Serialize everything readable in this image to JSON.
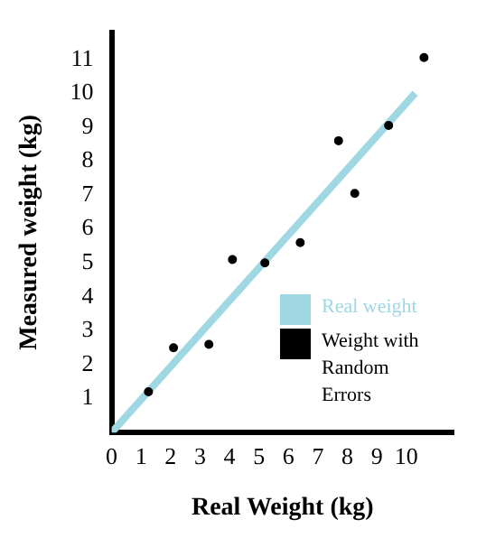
{
  "chart_data": {
    "type": "scatter",
    "xlabel": "Real Weight (kg)",
    "ylabel": "Measured weight (kg)",
    "xlim": [
      0,
      11.6
    ],
    "ylim": [
      0,
      11.8
    ],
    "xticks": [
      0,
      1,
      2,
      3,
      4,
      5,
      6,
      7,
      8,
      9,
      10
    ],
    "yticks": [
      1,
      2,
      3,
      4,
      5,
      6,
      7,
      8,
      9,
      10,
      11
    ],
    "grid": false,
    "legend": "right",
    "marker": "circle",
    "series": [
      {
        "name": "Real weight",
        "type": "line",
        "marker": "none",
        "color": "#9fd7e3",
        "x": [
          0,
          10.3
        ],
        "values": [
          0,
          10
        ]
      },
      {
        "name": "Weight with Random Errors",
        "color": "#000000",
        "x": [
          1.25,
          2.1,
          3.3,
          4.1,
          5.2,
          6.4,
          7.7,
          8.25,
          9.4,
          10.6
        ],
        "values": [
          1.2,
          2.5,
          2.6,
          5.1,
          5.0,
          5.6,
          8.6,
          7.05,
          9.05,
          11.05
        ]
      }
    ]
  }
}
